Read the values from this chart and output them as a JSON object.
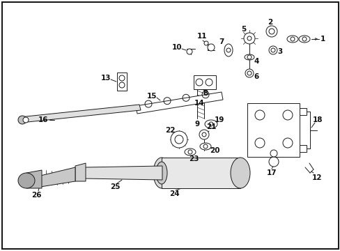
{
  "background_color": "#ffffff",
  "border_color": "#000000",
  "figsize": [
    4.89,
    3.6
  ],
  "dpi": 100,
  "line_color": "#1a1a1a",
  "lw": 0.7
}
